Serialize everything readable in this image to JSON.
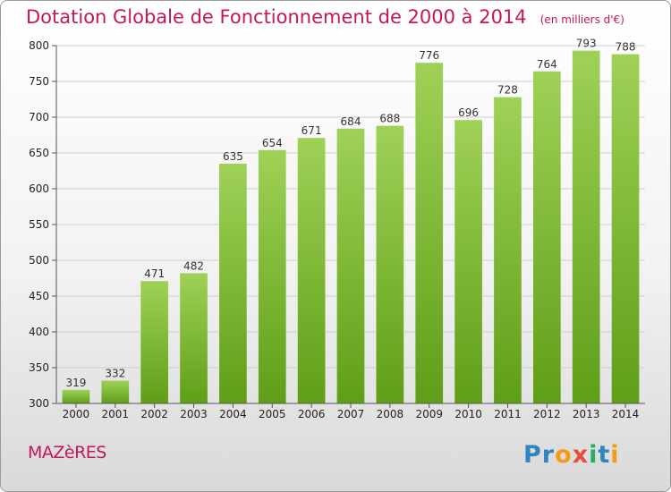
{
  "header": {
    "title": "Dotation Globale de Fonctionnement de 2000 à 2014",
    "subtitle": "(en milliers d'€)"
  },
  "footer": {
    "commune": "MAZèRES",
    "logo_text": "Proxiti"
  },
  "colors": {
    "title": "#c2185b",
    "bar_light": "#9fd157",
    "bar_dark": "#5f9e18",
    "grid": "#cfcfcf"
  },
  "chart_data": {
    "type": "bar",
    "title": "Dotation Globale de Fonctionnement de 2000 à 2014",
    "subtitle": "(en milliers d'€)",
    "categories": [
      "2000",
      "2001",
      "2002",
      "2003",
      "2004",
      "2005",
      "2006",
      "2007",
      "2008",
      "2009",
      "2010",
      "2011",
      "2012",
      "2013",
      "2014"
    ],
    "values": [
      319,
      332,
      471,
      482,
      635,
      654,
      671,
      684,
      688,
      776,
      696,
      728,
      764,
      793,
      788
    ],
    "ylim": [
      300,
      800
    ],
    "yticks": [
      300,
      350,
      400,
      450,
      500,
      550,
      600,
      650,
      700,
      750,
      800
    ],
    "grid": true,
    "data_labels": true
  }
}
